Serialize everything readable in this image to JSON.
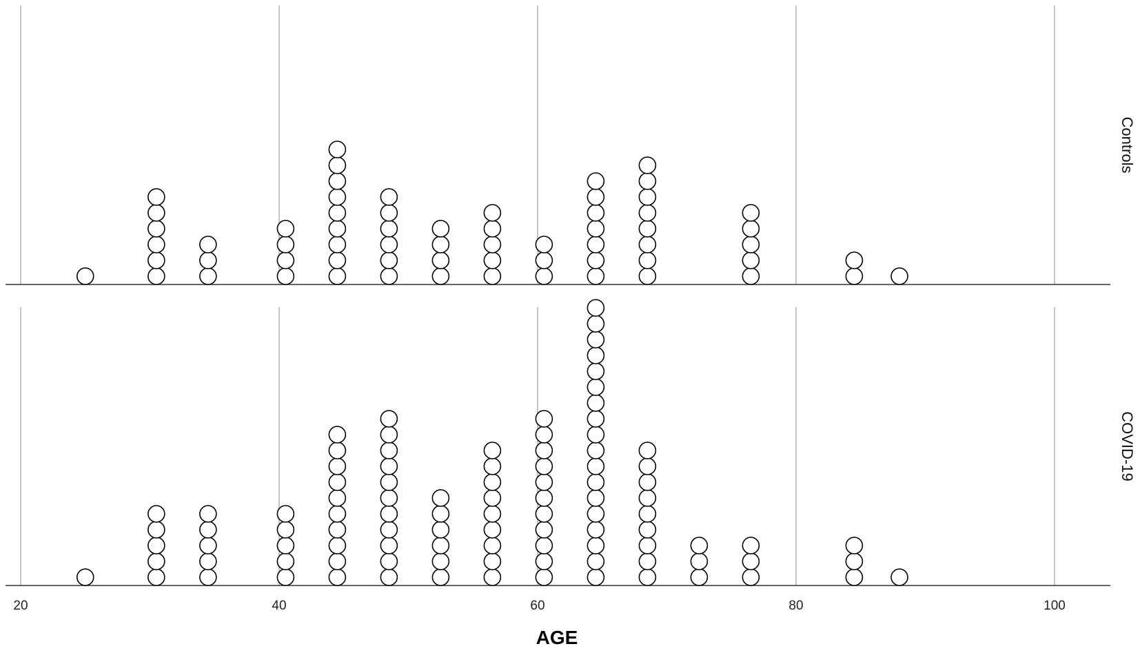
{
  "chart_data": {
    "type": "dot",
    "xlabel": "AGE",
    "xlim": [
      20,
      100
    ],
    "x_ticks": [
      20,
      40,
      60,
      80,
      100
    ],
    "grid": "vertical",
    "panels": [
      {
        "name": "Controls",
        "stacks": [
          {
            "x": 25,
            "count": 1
          },
          {
            "x": 30.5,
            "count": 6
          },
          {
            "x": 34.5,
            "count": 3
          },
          {
            "x": 40.5,
            "count": 4
          },
          {
            "x": 44.5,
            "count": 9
          },
          {
            "x": 48.5,
            "count": 6
          },
          {
            "x": 52.5,
            "count": 4
          },
          {
            "x": 56.5,
            "count": 5
          },
          {
            "x": 60.5,
            "count": 3
          },
          {
            "x": 64.5,
            "count": 7
          },
          {
            "x": 68.5,
            "count": 8
          },
          {
            "x": 76.5,
            "count": 5
          },
          {
            "x": 84.5,
            "count": 2
          },
          {
            "x": 88,
            "count": 1
          }
        ]
      },
      {
        "name": "COVID-19",
        "stacks": [
          {
            "x": 25,
            "count": 1
          },
          {
            "x": 30.5,
            "count": 5
          },
          {
            "x": 34.5,
            "count": 5
          },
          {
            "x": 40.5,
            "count": 5
          },
          {
            "x": 44.5,
            "count": 10
          },
          {
            "x": 48.5,
            "count": 11
          },
          {
            "x": 52.5,
            "count": 6
          },
          {
            "x": 56.5,
            "count": 9
          },
          {
            "x": 60.5,
            "count": 11
          },
          {
            "x": 64.5,
            "count": 18
          },
          {
            "x": 68.5,
            "count": 9
          },
          {
            "x": 72.5,
            "count": 3
          },
          {
            "x": 76.5,
            "count": 3
          },
          {
            "x": 84.5,
            "count": 3
          },
          {
            "x": 88,
            "count": 1
          }
        ]
      }
    ]
  }
}
